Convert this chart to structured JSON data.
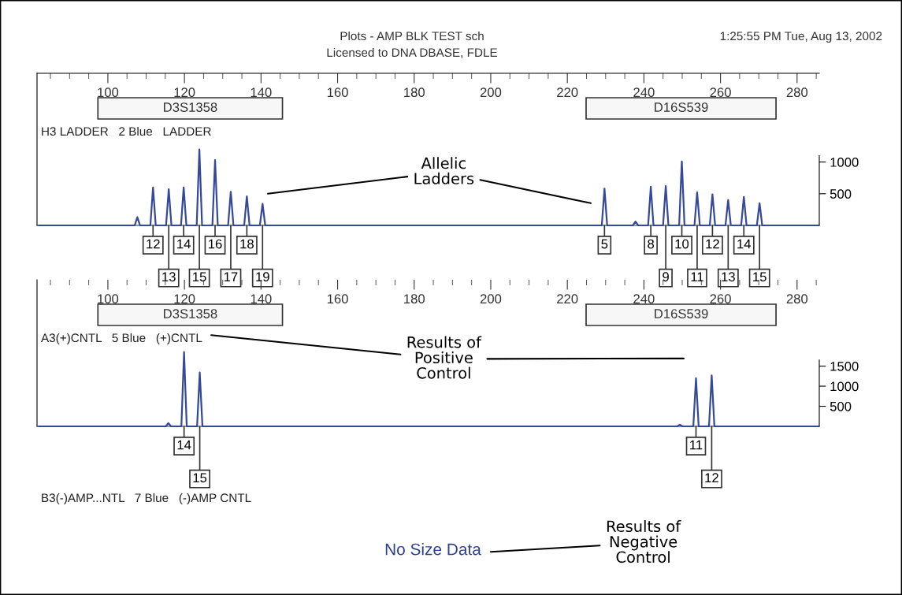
{
  "chart_data": [
    {
      "type": "line",
      "title": "H3 LADDER   2 Blue   LADDER",
      "xlim": [
        81.5,
        285.8
      ],
      "ylim": [
        0,
        2400
      ],
      "yticks": [
        500,
        1000
      ],
      "xticks": [
        {
          "value": 85,
          "label": null
        },
        {
          "value": 90,
          "label": null
        },
        {
          "value": 95,
          "label": null
        },
        100,
        {
          "value": 105,
          "label": null
        },
        {
          "value": 110,
          "label": null
        },
        {
          "value": 115,
          "label": null
        },
        120,
        {
          "value": 125,
          "label": null
        },
        {
          "value": 130,
          "label": null
        },
        {
          "value": 135,
          "label": null
        },
        140,
        {
          "value": 145,
          "label": null
        },
        {
          "value": 150,
          "label": null
        },
        {
          "value": 155,
          "label": null
        },
        160,
        {
          "value": 165,
          "label": null
        },
        {
          "value": 170,
          "label": null
        },
        {
          "value": 175,
          "label": null
        },
        180,
        {
          "value": 185,
          "label": null
        },
        {
          "value": 190,
          "label": null
        },
        {
          "value": 195,
          "label": null
        },
        200,
        {
          "value": 205,
          "label": null
        },
        {
          "value": 210,
          "label": null
        },
        {
          "value": 215,
          "label": null
        },
        220,
        {
          "value": 225,
          "label": null
        },
        {
          "value": 230,
          "label": null
        },
        {
          "value": 235,
          "label": null
        },
        240,
        {
          "value": 245,
          "label": null
        },
        {
          "value": 250,
          "label": null
        },
        {
          "value": 255,
          "label": null
        },
        260,
        {
          "value": 265,
          "label": null
        },
        {
          "value": 270,
          "label": null
        },
        {
          "value": 275,
          "label": null
        },
        280,
        {
          "value": 285,
          "label": null
        }
      ],
      "series": [
        {
          "color": "#34499a",
          "x": [
            82,
            107.0,
            107.7,
            108.4,
            111.1,
            111.8,
            112.5,
            115.2,
            115.9,
            116.6,
            119.1,
            119.8,
            120.5,
            123.2,
            123.9,
            124.6,
            127.3,
            128.0,
            128.7,
            131.4,
            132.1,
            132.8,
            135.6,
            136.3,
            137.0,
            139.7,
            140.4,
            141.1,
            229.0,
            229.7,
            230.4,
            237.1,
            237.8,
            238.5,
            241.1,
            241.8,
            242.5,
            245.0,
            245.7,
            246.4,
            249.2,
            249.9,
            250.6,
            253.2,
            253.9,
            254.6,
            257.2,
            257.9,
            258.6,
            261.3,
            262.0,
            262.7,
            265.4,
            266.1,
            266.8,
            269.5,
            270.2,
            270.9,
            285.5
          ],
          "values": [
            0,
            0,
            130,
            0,
            0,
            600,
            0,
            0,
            570,
            0,
            0,
            600,
            0,
            0,
            1200,
            0,
            0,
            1030,
            0,
            0,
            530,
            0,
            0,
            460,
            0,
            0,
            340,
            0,
            0,
            580,
            0,
            0,
            60,
            0,
            0,
            610,
            0,
            0,
            620,
            0,
            0,
            1010,
            0,
            0,
            520,
            0,
            0,
            490,
            0,
            0,
            400,
            0,
            0,
            450,
            0,
            0,
            350,
            0,
            0
          ]
        }
      ],
      "bands": [
        {
          "axis": "x",
          "from": 97.4,
          "to": 145.6,
          "label": "D3S1358"
        },
        {
          "axis": "x",
          "from": 224.9,
          "to": 274.5,
          "label": "D16S539"
        }
      ],
      "annotations": [
        "Plots - AMP BLK TEST sch",
        "Licensed to DNA DBASE, FDLE",
        "1:25:55 PM Tue, Aug 13, 2002",
        "Allelic\nLadders",
        {
          "text": "12",
          "x": 111.8,
          "y": 0
        },
        {
          "text": "13",
          "x": 115.9,
          "y": 0
        },
        {
          "text": "14",
          "x": 119.8,
          "y": 0
        },
        {
          "text": "15",
          "x": 123.9,
          "y": 0
        },
        {
          "text": "16",
          "x": 128.0,
          "y": 0
        },
        {
          "text": "17",
          "x": 132.1,
          "y": 0
        },
        {
          "text": "18",
          "x": 136.3,
          "y": 0
        },
        {
          "text": "19",
          "x": 140.4,
          "y": 0
        },
        {
          "text": "5",
          "x": 229.7,
          "y": 0
        },
        {
          "text": "8",
          "x": 241.8,
          "y": 0
        },
        {
          "text": "9",
          "x": 245.7,
          "y": 0
        },
        {
          "text": "10",
          "x": 249.9,
          "y": 0
        },
        {
          "text": "11",
          "x": 253.9,
          "y": 0
        },
        {
          "text": "12",
          "x": 257.9,
          "y": 0
        },
        {
          "text": "13",
          "x": 262.0,
          "y": 0
        },
        {
          "text": "14",
          "x": 266.1,
          "y": 0
        },
        {
          "text": "15",
          "x": 270.2,
          "y": 0
        }
      ]
    },
    {
      "type": "line",
      "title": "A3(+)CNTL   5 Blue   (+)CNTL",
      "xlim": [
        81.5,
        285.8
      ],
      "ylim": [
        0,
        3650
      ],
      "yticks": [
        500,
        1000,
        1500
      ],
      "xticks": [
        {
          "value": 85,
          "label": null
        },
        {
          "value": 90,
          "label": null
        },
        {
          "value": 95,
          "label": null
        },
        100,
        {
          "value": 105,
          "label": null
        },
        {
          "value": 110,
          "label": null
        },
        {
          "value": 115,
          "label": null
        },
        120,
        {
          "value": 125,
          "label": null
        },
        {
          "value": 130,
          "label": null
        },
        {
          "value": 135,
          "label": null
        },
        140,
        {
          "value": 145,
          "label": null
        },
        {
          "value": 150,
          "label": null
        },
        {
          "value": 155,
          "label": null
        },
        160,
        {
          "value": 165,
          "label": null
        },
        {
          "value": 170,
          "label": null
        },
        {
          "value": 175,
          "label": null
        },
        180,
        {
          "value": 185,
          "label": null
        },
        {
          "value": 190,
          "label": null
        },
        {
          "value": 195,
          "label": null
        },
        200,
        {
          "value": 205,
          "label": null
        },
        {
          "value": 210,
          "label": null
        },
        {
          "value": 215,
          "label": null
        },
        220,
        {
          "value": 225,
          "label": null
        },
        {
          "value": 230,
          "label": null
        },
        {
          "value": 235,
          "label": null
        },
        240,
        {
          "value": 245,
          "label": null
        },
        {
          "value": 250,
          "label": null
        },
        {
          "value": 255,
          "label": null
        },
        260,
        {
          "value": 265,
          "label": null
        },
        {
          "value": 270,
          "label": null
        },
        {
          "value": 275,
          "label": null
        },
        280,
        {
          "value": 285,
          "label": null
        }
      ],
      "series": [
        {
          "color": "#34499a",
          "x": [
            82,
            115.1,
            115.8,
            116.5,
            119.2,
            119.9,
            120.6,
            123.3,
            124.0,
            124.7,
            248.7,
            249.4,
            250.1,
            252.9,
            253.6,
            254.3,
            257.0,
            257.7,
            258.4,
            285.5
          ],
          "values": [
            0,
            0,
            80,
            0,
            0,
            1850,
            0,
            0,
            1340,
            0,
            0,
            40,
            0,
            0,
            1200,
            0,
            0,
            1270,
            0,
            0
          ]
        }
      ],
      "bands": [
        {
          "axis": "x",
          "from": 97.4,
          "to": 145.6,
          "label": "D3S1358"
        },
        {
          "axis": "x",
          "from": 224.9,
          "to": 274.5,
          "label": "D16S539"
        }
      ],
      "annotations": [
        "Results of\nPositive\nControl",
        {
          "text": "14",
          "x": 119.9,
          "y": 0
        },
        {
          "text": "15",
          "x": 124.0,
          "y": 0
        },
        {
          "text": "11",
          "x": 253.6,
          "y": 0
        },
        {
          "text": "12",
          "x": 257.7,
          "y": 0
        }
      ]
    },
    {
      "type": "other",
      "title": "B3(-)AMP...NTL   7 Blue   (-)AMP CNTL",
      "annotations": [
        "No Size Data",
        "Results of\nNegative\nControl"
      ]
    }
  ]
}
